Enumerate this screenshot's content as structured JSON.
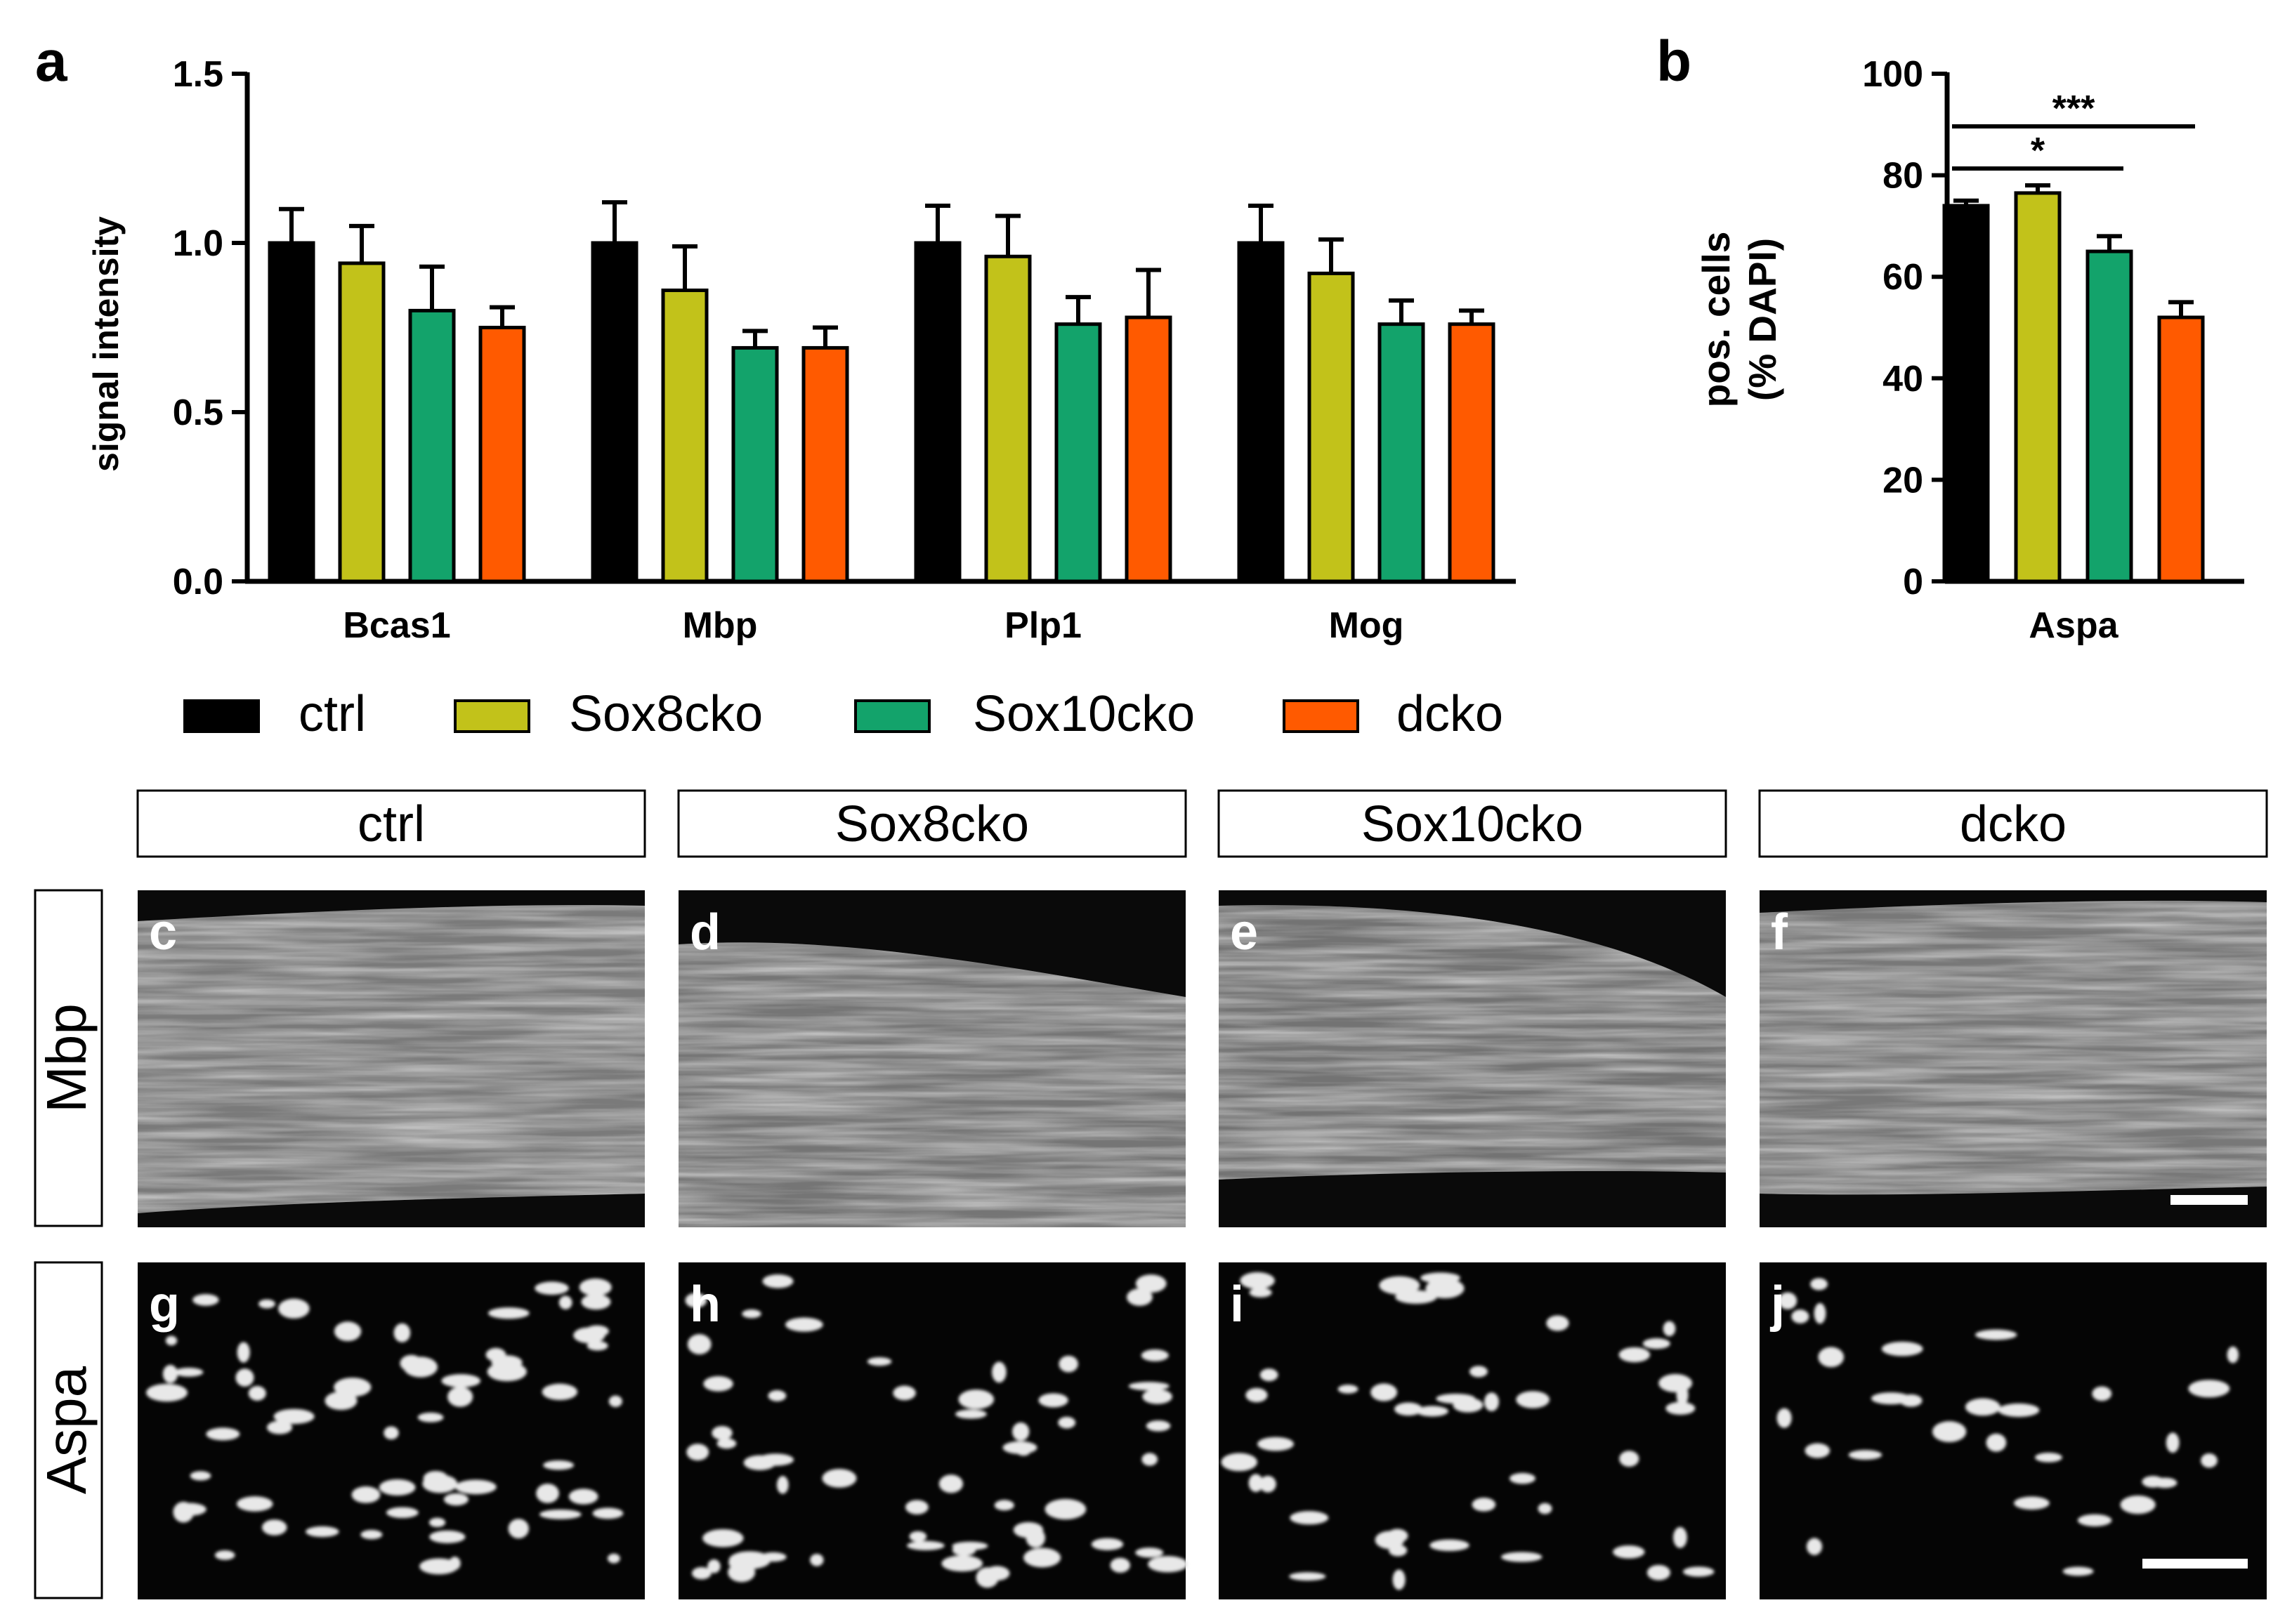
{
  "panel_letters": [
    "a",
    "b"
  ],
  "colors": {
    "ctrl": "#000000",
    "Sox8cko": "#c2c21a",
    "Sox10cko": "#13a36b",
    "dcko": "#ff5a00",
    "axis": "#000000",
    "micro_bg": "#0a0a0a"
  },
  "legend": [
    {
      "label": "ctrl",
      "color": "#000000"
    },
    {
      "label": "Sox8cko",
      "color": "#c2c21a"
    },
    {
      "label": "Sox10cko",
      "color": "#13a36b"
    },
    {
      "label": "dcko",
      "color": "#ff5a00"
    }
  ],
  "chart_data": [
    {
      "type": "bar",
      "panel": "a",
      "ylabel": "signal intensity",
      "ylim": [
        0,
        1.5
      ],
      "yticks": [
        "0.0",
        "0.5",
        "1.0",
        "1.5"
      ],
      "categories": [
        "Bcas1",
        "Mbp",
        "Plp1",
        "Mog"
      ],
      "series": [
        {
          "name": "ctrl",
          "values": [
            1.0,
            1.0,
            1.0,
            1.0
          ],
          "errors": [
            0.1,
            0.12,
            0.11,
            0.11
          ]
        },
        {
          "name": "Sox8cko",
          "values": [
            0.94,
            0.86,
            0.96,
            0.91
          ],
          "errors": [
            0.11,
            0.13,
            0.12,
            0.1
          ]
        },
        {
          "name": "Sox10cko",
          "values": [
            0.8,
            0.69,
            0.76,
            0.76
          ],
          "errors": [
            0.13,
            0.05,
            0.08,
            0.07
          ]
        },
        {
          "name": "dcko",
          "values": [
            0.75,
            0.69,
            0.78,
            0.76
          ],
          "errors": [
            0.06,
            0.06,
            0.14,
            0.04
          ]
        }
      ]
    },
    {
      "type": "bar",
      "panel": "b",
      "ylabel_lines": [
        "pos. cells",
        "(% DAPI)"
      ],
      "ylim": [
        0,
        100
      ],
      "yticks": [
        "0",
        "20",
        "40",
        "60",
        "80",
        "100"
      ],
      "categories": [
        "Aspa"
      ],
      "series": [
        {
          "name": "ctrl",
          "values": [
            74
          ],
          "errors": [
            1
          ]
        },
        {
          "name": "Sox8cko",
          "values": [
            76.5
          ],
          "errors": [
            1.5
          ]
        },
        {
          "name": "Sox10cko",
          "values": [
            65
          ],
          "errors": [
            3
          ]
        },
        {
          "name": "dcko",
          "values": [
            52
          ],
          "errors": [
            3
          ]
        }
      ],
      "significance": [
        {
          "label": "*",
          "from": "ctrl",
          "to": "Sox10cko"
        },
        {
          "label": "***",
          "from": "ctrl",
          "to": "dcko"
        }
      ]
    }
  ],
  "micrographs": {
    "column_headers": [
      "ctrl",
      "Sox8cko",
      "Sox10cko",
      "dcko"
    ],
    "row_labels": [
      "Mbp",
      "Aspa"
    ],
    "panel_letters": [
      [
        "c",
        "d",
        "e",
        "f"
      ],
      [
        "g",
        "h",
        "i",
        "j"
      ]
    ]
  }
}
